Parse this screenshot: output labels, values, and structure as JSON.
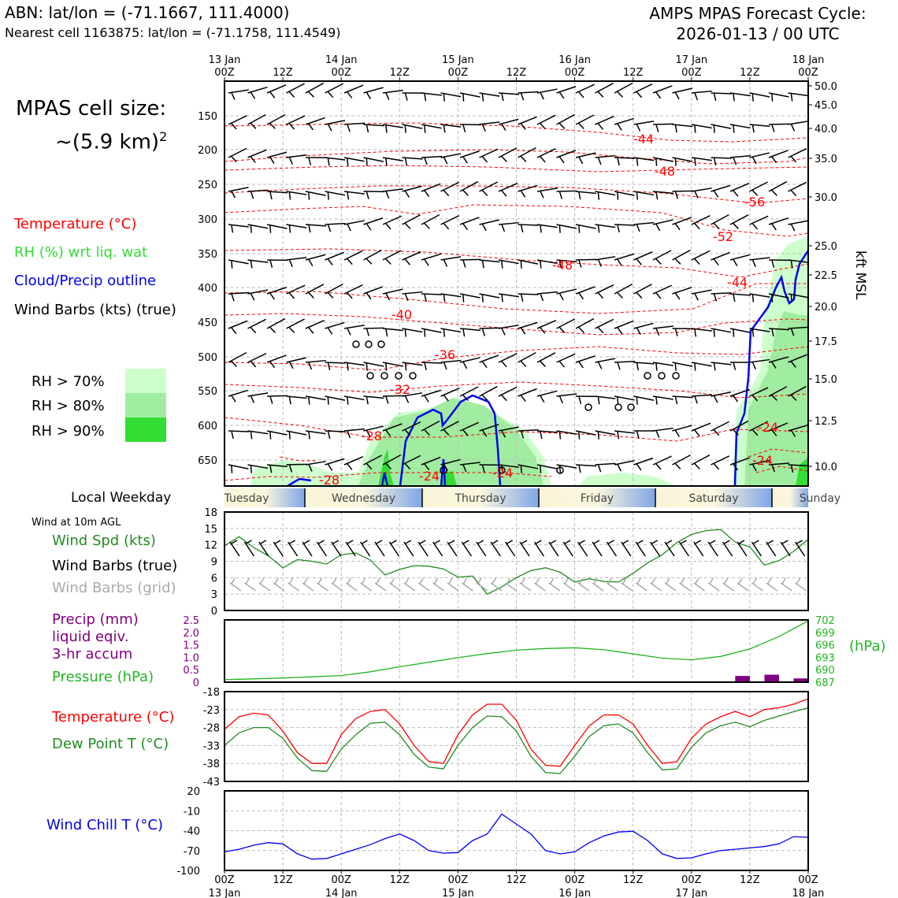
{
  "header": {
    "station_line": "ABN: lat/lon = (-71.1667, 111.4000)",
    "cell_line": "Nearest cell 1163875: lat/lon = (-71.1758, 111.4549)",
    "cycle_line1": "AMPS MPAS Forecast Cycle:",
    "cycle_line2": "2026-01-13 / 00 UTC"
  },
  "cell_size": {
    "label": "MPAS cell size:",
    "value": "~(5.9 km)",
    "sup": "2"
  },
  "legend": {
    "temperature": "Temperature (°C)",
    "rh": "RH (%) wrt liq. wat",
    "cloud": "Cloud/Precip outline",
    "barbs": "Wind Barbs (kts) (true)",
    "rh70": "RH > 70%",
    "rh80": "RH > 80%",
    "rh90": "RH > 90%"
  },
  "colors": {
    "temperature": "#ff0000",
    "rh_text": "#33dd33",
    "cloud": "#0000ee",
    "rh70": "#ccffcc",
    "rh80": "#a0eca0",
    "rh90": "#33dd33",
    "wind_speed": "#228b22",
    "precip": "#800080",
    "pressure": "#22b422",
    "dewpoint": "#228b22",
    "windchill": "#0000ee"
  },
  "time_axis": {
    "top_dates": [
      "13 Jan",
      "",
      "14 Jan",
      "",
      "15 Jan",
      "",
      "16 Jan",
      "",
      "17 Jan",
      "",
      "18 Jan"
    ],
    "hours": [
      "00Z",
      "12Z",
      "00Z",
      "12Z",
      "00Z",
      "12Z",
      "00Z",
      "12Z",
      "00Z",
      "12Z",
      "00Z"
    ],
    "weekdays": [
      "Tuesday",
      "Wednesday",
      "Thursday",
      "Friday",
      "Saturday",
      "Sunday"
    ],
    "weekday_label": "Local Weekday"
  },
  "chart_data": [
    {
      "type": "cross-section",
      "name": "time-height section",
      "y_pressure_ticks": [
        "150",
        "200",
        "250",
        "300",
        "350",
        "400",
        "450",
        "500",
        "550",
        "600",
        "650"
      ],
      "y_kft_ticks": [
        "50.0",
        "45.0",
        "40.0",
        "35.0",
        "30.0",
        "25.0",
        "22.5",
        "20.0",
        "17.5",
        "15.0",
        "12.5",
        "10.0"
      ],
      "y2label": "kft MSL",
      "temperature_contour_labels": [
        "-44",
        "-48",
        "-56",
        "-52",
        "-48",
        "-44",
        "-40",
        "-36",
        "-32",
        "-28",
        "-28",
        "-24",
        "-24",
        "-24",
        "-24"
      ]
    },
    {
      "type": "line",
      "name": "wind at 10m",
      "title": "Wind at 10m AGL",
      "legend": [
        "Wind Spd (kts)",
        "Wind Barbs (true)",
        "Wind Barbs (grid)"
      ],
      "ylim": [
        0,
        18
      ],
      "yticks": [
        "18",
        "15",
        "12",
        "9",
        "6",
        "3",
        "0"
      ],
      "x_hours": [
        0,
        3,
        6,
        9,
        12,
        15,
        18,
        21,
        24,
        27,
        30,
        33,
        36,
        39,
        42,
        45,
        48,
        51,
        54,
        57,
        60,
        63,
        66,
        69,
        72,
        75,
        78,
        81,
        84,
        87,
        90,
        93,
        96,
        99,
        102,
        105,
        108,
        111,
        114,
        117,
        120
      ],
      "wind_speed": [
        11.8,
        13.5,
        11.5,
        10,
        7.8,
        9.3,
        9,
        8.5,
        10.2,
        10.5,
        9.2,
        6.5,
        7.5,
        8.2,
        8.1,
        7.6,
        6.1,
        6.3,
        3,
        4.3,
        6,
        7.3,
        7.8,
        7,
        5.2,
        5.8,
        5.3,
        5.2,
        6.8,
        8.7,
        10.2,
        12.4,
        13.9,
        14.6,
        14.8,
        12.5,
        11.6,
        8.3,
        9.1,
        10.8,
        13
      ]
    },
    {
      "type": "line",
      "name": "precip and pressure",
      "legend": [
        "Precip (mm) liquid eqiv. 3-hr accum",
        "Pressure (hPa)"
      ],
      "precip_ylim": [
        0,
        2.5
      ],
      "precip_yticks": [
        "2.5",
        "2.0",
        "1.5",
        "1.0",
        "0.5",
        "0"
      ],
      "pressure_yticks": [
        "702",
        "699",
        "696",
        "693",
        "690",
        "687"
      ],
      "pressure_unit": "(hPa)",
      "pressure_ylim": [
        687,
        702
      ],
      "x_hours": [
        0,
        6,
        12,
        18,
        24,
        30,
        36,
        42,
        48,
        54,
        60,
        66,
        72,
        78,
        84,
        90,
        96,
        102,
        108,
        114,
        120
      ],
      "pressure": [
        687.6,
        687.8,
        688.0,
        688.3,
        688.6,
        689.5,
        690.7,
        691.8,
        692.9,
        693.9,
        694.7,
        695.1,
        695.3,
        694.8,
        693.8,
        692.8,
        692.4,
        693.2,
        695.0,
        698.0,
        701.8
      ],
      "precip": [
        0,
        0,
        0,
        0,
        0,
        0,
        0,
        0,
        0,
        0,
        0,
        0,
        0,
        0,
        0,
        0,
        0,
        0,
        0.25,
        0.3,
        0.15
      ]
    },
    {
      "type": "line",
      "name": "temperature and dew point",
      "legend": [
        "Temperature (°C)",
        "Dew Point T (°C)"
      ],
      "ylim": [
        -43,
        -18
      ],
      "yticks": [
        "-18",
        "-23",
        "-28",
        "-33",
        "-38",
        "-43"
      ],
      "x_hours": [
        0,
        3,
        6,
        9,
        12,
        15,
        18,
        21,
        24,
        27,
        30,
        33,
        36,
        39,
        42,
        45,
        48,
        51,
        54,
        57,
        60,
        63,
        66,
        69,
        72,
        75,
        78,
        81,
        84,
        87,
        90,
        93,
        96,
        99,
        102,
        105,
        108,
        111,
        114,
        117,
        120
      ],
      "temperature": [
        -28.5,
        -25,
        -24,
        -24.5,
        -29,
        -35,
        -38,
        -38,
        -30,
        -25.5,
        -23.5,
        -23,
        -27,
        -33,
        -37.5,
        -38,
        -30,
        -24.5,
        -21.5,
        -21.5,
        -26,
        -34,
        -38.5,
        -38.8,
        -33,
        -27.5,
        -24.5,
        -24.5,
        -27,
        -33,
        -38,
        -37.5,
        -31,
        -27,
        -25,
        -23.5,
        -25,
        -23,
        -22.5,
        -21.5,
        -20
      ],
      "dewpoint": [
        -33,
        -29.5,
        -28,
        -28,
        -31,
        -36.5,
        -40,
        -40.2,
        -34,
        -30,
        -26.8,
        -26.5,
        -30,
        -35.5,
        -39,
        -39.5,
        -33,
        -28,
        -24.8,
        -25,
        -29,
        -36,
        -40.5,
        -40.8,
        -36,
        -30.5,
        -27.5,
        -27,
        -29.5,
        -35,
        -39.8,
        -39.5,
        -33.5,
        -29.5,
        -27.5,
        -26.5,
        -27.8,
        -26,
        -24.8,
        -23.6,
        -22.5
      ]
    },
    {
      "type": "line",
      "name": "wind chill",
      "legend": [
        "Wind Chill T (°C)"
      ],
      "ylim": [
        -100,
        20
      ],
      "yticks": [
        "20",
        "-10",
        "-40",
        "-70",
        "-100"
      ],
      "x_hours": [
        0,
        3,
        6,
        9,
        12,
        15,
        18,
        21,
        24,
        27,
        30,
        33,
        36,
        39,
        42,
        45,
        48,
        51,
        54,
        57,
        60,
        63,
        66,
        69,
        72,
        75,
        78,
        81,
        84,
        87,
        90,
        93,
        96,
        99,
        102,
        105,
        108,
        111,
        114,
        117,
        120
      ],
      "wind_chill": [
        -72,
        -68,
        -62,
        -58,
        -60,
        -75,
        -83,
        -82,
        -75,
        -68,
        -61,
        -52,
        -45,
        -55,
        -70,
        -74,
        -73,
        -55,
        -45,
        -15,
        -30,
        -45,
        -70,
        -75,
        -72,
        -58,
        -48,
        -42,
        -41,
        -55,
        -75,
        -82,
        -81,
        -75,
        -70,
        -68,
        -66,
        -64,
        -60,
        -49,
        -50
      ]
    }
  ],
  "panel_legends": {
    "wind_title": "Wind at 10m AGL",
    "wind_spd": "Wind Spd (kts)",
    "wind_true": "Wind Barbs (true)",
    "wind_grid": "Wind Barbs (grid)",
    "precip1": "Precip (mm)",
    "precip2": "liquid eqiv.",
    "precip3": "3-hr accum",
    "pressure": "Pressure (hPa)",
    "temp": "Temperature (°C)",
    "dew": "Dew Point T (°C)",
    "chill": "Wind Chill T (°C)"
  }
}
